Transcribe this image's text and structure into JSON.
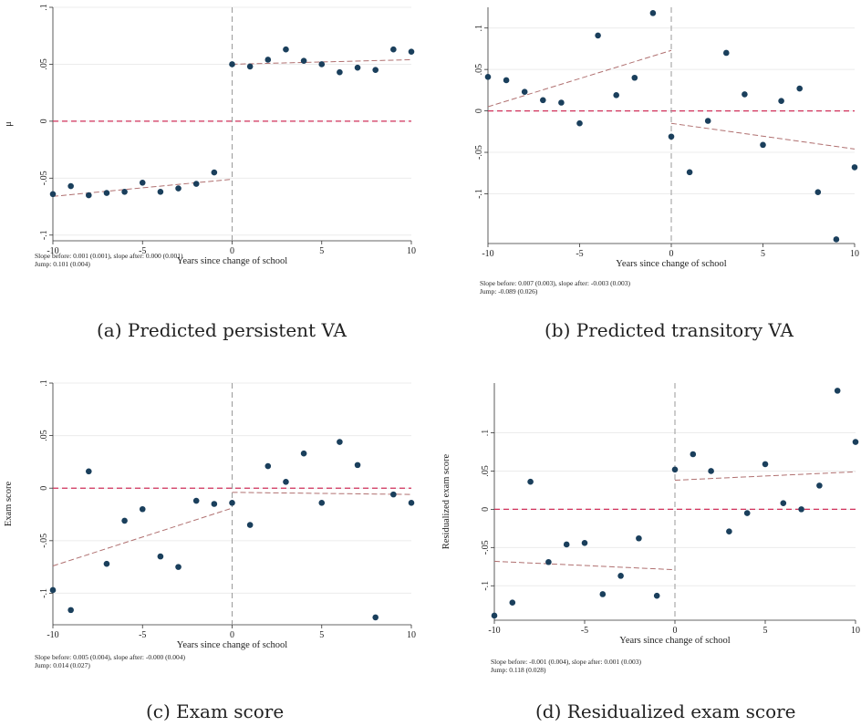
{
  "panels": [
    {
      "caption": "(a) Predicted persistent VA",
      "note1": "Slope before: 0.001 (0.001), slope after: 0.000 (0.001)",
      "note2": "Jump: 0.101 (0.004)"
    },
    {
      "caption": "(b) Predicted transitory VA",
      "note1": "Slope before: 0.007 (0.003), slope after: -0.003 (0.003)",
      "note2": "Jump: -0.089 (0.026)"
    },
    {
      "caption": "(c) Exam score",
      "note1": "Slope before: 0.005 (0.004), slope after: -0.000 (0.004)",
      "note2": "Jump: 0.014 (0.027)"
    },
    {
      "caption": "(d) Residualized exam score",
      "note1": "Slope before: -0.001 (0.004), slope after: 0.001 (0.003)",
      "note2": "Jump: 0.118 (0.028)"
    }
  ],
  "chart_data": [
    {
      "type": "scatter",
      "xlabel": "Years since change of school",
      "ylabel": "μ",
      "xlim": [
        -10,
        10
      ],
      "ylim": [
        -0.105,
        0.1
      ],
      "xticks": [
        -10,
        -5,
        0,
        5,
        10
      ],
      "yticks": [
        0.1,
        0.05,
        0,
        -0.05,
        -0.1
      ],
      "ytick_labels": [
        ".1",
        ".05",
        "0",
        "-.05",
        "-.1"
      ],
      "x": [
        -10,
        -9,
        -8,
        -7,
        -6,
        -5,
        -4,
        -3,
        -2,
        -1,
        0,
        1,
        2,
        3,
        4,
        5,
        6,
        7,
        8,
        9,
        10
      ],
      "y": [
        -0.064,
        -0.057,
        -0.065,
        -0.063,
        -0.062,
        -0.054,
        -0.062,
        -0.059,
        -0.055,
        -0.045,
        0.05,
        0.048,
        0.054,
        0.063,
        0.053,
        0.05,
        0.043,
        0.047,
        0.045,
        0.063,
        0.061
      ],
      "fit_before": [
        [
          -10,
          -0.066
        ],
        [
          0,
          -0.051
        ]
      ],
      "fit_after": [
        [
          0,
          0.05
        ],
        [
          10,
          0.054
        ]
      ],
      "zero_line": 0,
      "cutoff": 0,
      "grid": true,
      "colors": {
        "points": "#1a3f5c",
        "fit": "#b07070",
        "zero": "#d0305a",
        "cutoff": "#999999"
      }
    },
    {
      "type": "scatter",
      "xlabel": "Years since change of school",
      "ylabel": "",
      "xlim": [
        -10,
        10
      ],
      "ylim": [
        -0.16,
        0.125
      ],
      "xticks": [
        -10,
        -5,
        0,
        5,
        10
      ],
      "yticks": [
        0.1,
        0.05,
        0,
        -0.05,
        -0.1
      ],
      "ytick_labels": [
        ".1",
        ".05",
        "0",
        "-.05",
        "-.1"
      ],
      "x": [
        -10,
        -9,
        -8,
        -7,
        -6,
        -5,
        -4,
        -3,
        -2,
        -1,
        0,
        1,
        2,
        3,
        4,
        5,
        6,
        7,
        8,
        9,
        10
      ],
      "y": [
        0.041,
        0.037,
        0.023,
        0.013,
        0.01,
        -0.015,
        0.091,
        0.019,
        0.04,
        0.118,
        -0.031,
        -0.074,
        -0.012,
        0.07,
        0.02,
        -0.041,
        0.012,
        0.027,
        -0.098,
        -0.155,
        -0.068
      ],
      "fit_before": [
        [
          -10,
          0.005
        ],
        [
          0,
          0.073
        ]
      ],
      "fit_after": [
        [
          0,
          -0.015
        ],
        [
          10,
          -0.046
        ]
      ],
      "zero_line": 0,
      "cutoff": 0,
      "grid": true,
      "colors": {
        "points": "#1a3f5c",
        "fit": "#b07070",
        "zero": "#d0305a",
        "cutoff": "#999999"
      }
    },
    {
      "type": "scatter",
      "xlabel": "Years since change of school",
      "ylabel": "Exam score",
      "xlim": [
        -10,
        10
      ],
      "ylim": [
        -0.13,
        0.1
      ],
      "xticks": [
        -10,
        -5,
        0,
        5,
        10
      ],
      "yticks": [
        0.1,
        0.05,
        0,
        -0.05,
        -0.1
      ],
      "ytick_labels": [
        ".1",
        ".05",
        "0",
        "-.05",
        "-.1"
      ],
      "x": [
        -10,
        -9,
        -8,
        -7,
        -6,
        -5,
        -4,
        -3,
        -2,
        -1,
        0,
        1,
        2,
        3,
        4,
        5,
        6,
        7,
        8,
        9,
        10
      ],
      "y": [
        -0.097,
        -0.116,
        0.016,
        -0.072,
        -0.031,
        -0.02,
        -0.065,
        -0.075,
        -0.012,
        -0.015,
        -0.014,
        -0.035,
        0.021,
        0.006,
        0.033,
        -0.014,
        0.044,
        0.022,
        -0.123,
        -0.006,
        -0.014
      ],
      "fit_before": [
        [
          -10,
          -0.074
        ],
        [
          0,
          -0.019
        ]
      ],
      "fit_after": [
        [
          0,
          -0.004
        ],
        [
          10,
          -0.006
        ]
      ],
      "zero_line": 0,
      "cutoff": 0,
      "grid": true,
      "colors": {
        "points": "#1a3f5c",
        "fit": "#b07070",
        "zero": "#d0305a",
        "cutoff": "#999999"
      }
    },
    {
      "type": "scatter",
      "xlabel": "Years since change of school",
      "ylabel": "Residualized exam score",
      "xlim": [
        -10,
        10
      ],
      "ylim": [
        -0.145,
        0.165
      ],
      "xticks": [
        -10,
        -5,
        0,
        5,
        10
      ],
      "yticks": [
        0.1,
        0.05,
        0,
        -0.05,
        -0.1
      ],
      "ytick_labels": [
        ".1",
        ".05",
        "0",
        "-.05",
        "-.1"
      ],
      "x": [
        -10,
        -9,
        -8,
        -7,
        -6,
        -5,
        -4,
        -3,
        -2,
        -1,
        0,
        1,
        2,
        3,
        4,
        5,
        6,
        7,
        8,
        9,
        10
      ],
      "y": [
        -0.139,
        -0.122,
        0.036,
        -0.069,
        -0.046,
        -0.044,
        -0.111,
        -0.087,
        -0.038,
        -0.113,
        0.052,
        0.072,
        0.05,
        -0.029,
        -0.005,
        0.059,
        0.008,
        0.0,
        0.031,
        0.155,
        0.088
      ],
      "fit_before": [
        [
          -10,
          -0.068
        ],
        [
          0,
          -0.079
        ]
      ],
      "fit_after": [
        [
          0,
          0.038
        ],
        [
          10,
          0.049
        ]
      ],
      "zero_line": 0,
      "cutoff": 0,
      "grid": true,
      "colors": {
        "points": "#1a3f5c",
        "fit": "#b07070",
        "zero": "#d0305a",
        "cutoff": "#999999"
      }
    }
  ]
}
